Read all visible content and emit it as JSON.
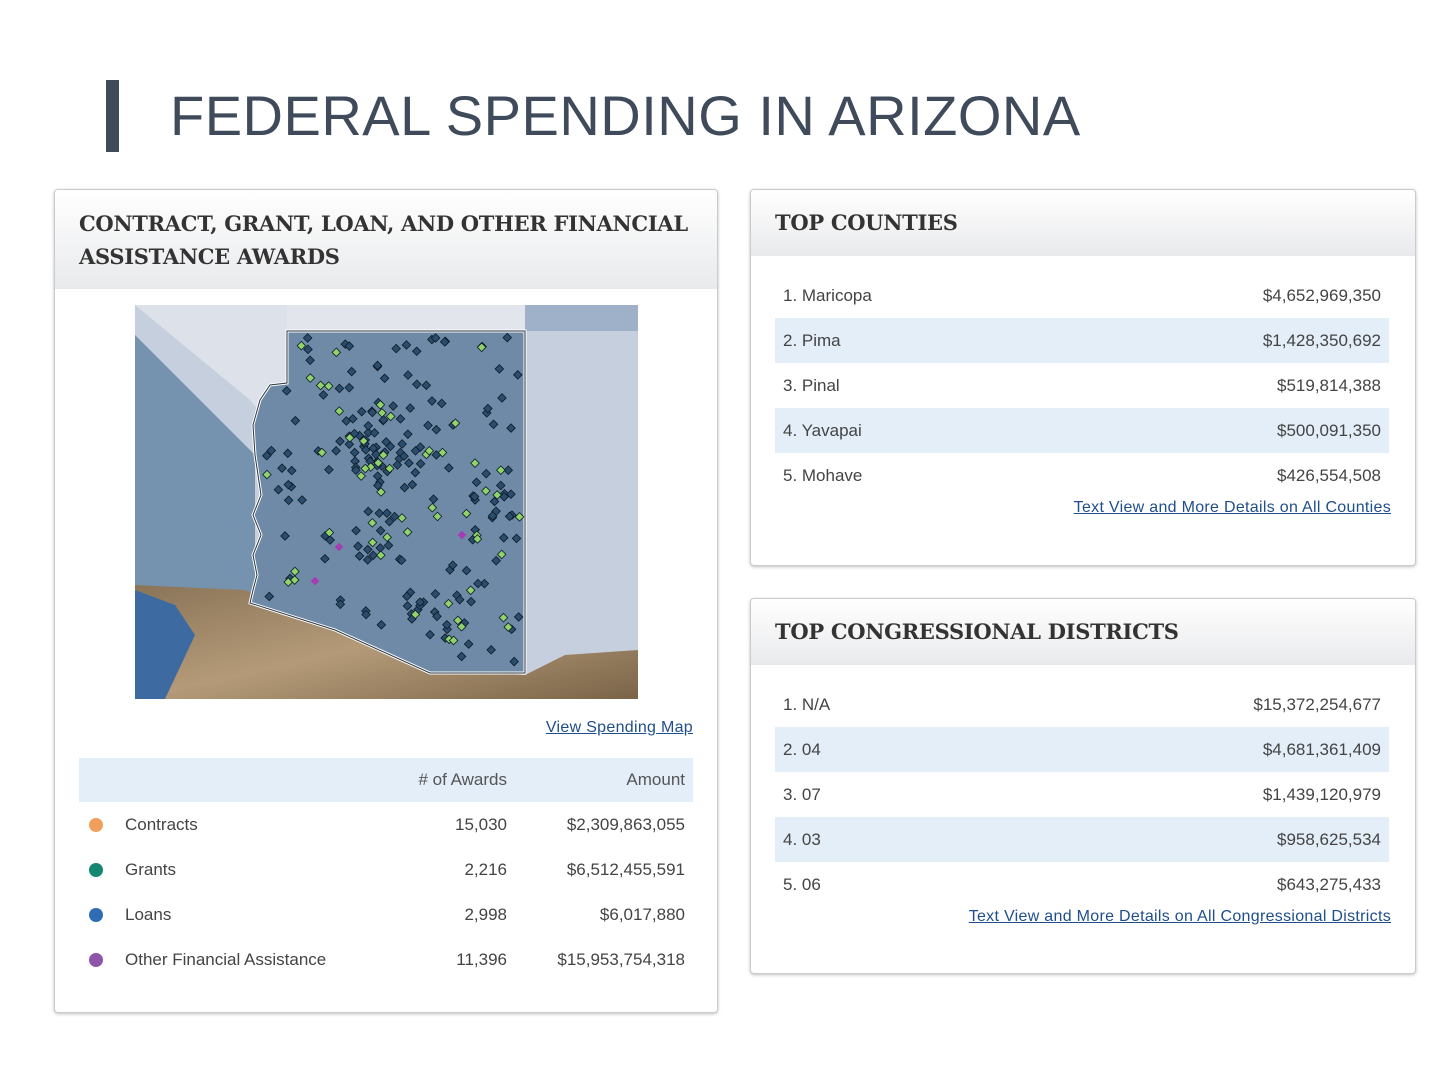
{
  "page": {
    "title": "FEDERAL SPENDING IN ARIZONA"
  },
  "awards": {
    "heading": "CONTRACT, GRANT, LOAN, AND OTHER FINANCIAL ASSISTANCE AWARDS",
    "map_link": "View Spending Map",
    "columns": {
      "awards": "# of Awards",
      "amount": "Amount"
    },
    "rows": [
      {
        "name": "Contracts",
        "awards": "15,030",
        "amount": "$2,309,863,055",
        "color": "#f0a05a"
      },
      {
        "name": "Grants",
        "awards": "2,216",
        "amount": "$6,512,455,591",
        "color": "#15876f"
      },
      {
        "name": "Loans",
        "awards": "2,998",
        "amount": "$6,017,880",
        "color": "#2e6db4"
      },
      {
        "name": "Other Financial Assistance",
        "awards": "11,396",
        "amount": "$15,953,754,318",
        "color": "#8e55a8"
      }
    ]
  },
  "counties": {
    "heading": "TOP COUNTIES",
    "items": [
      {
        "label": "1. Maricopa",
        "value": "$4,652,969,350"
      },
      {
        "label": "2. Pima",
        "value": "$1,428,350,692"
      },
      {
        "label": "3. Pinal",
        "value": "$519,814,388"
      },
      {
        "label": "4. Yavapai",
        "value": "$500,091,350"
      },
      {
        "label": "5. Mohave",
        "value": "$426,554,508"
      }
    ],
    "link": "Text View and More Details on All Counties"
  },
  "districts": {
    "heading": "TOP CONGRESSIONAL DISTRICTS",
    "items": [
      {
        "label": "1. N/A",
        "value": "$15,372,254,677"
      },
      {
        "label": "2. 04",
        "value": "$4,681,361,409"
      },
      {
        "label": "3. 07",
        "value": "$1,439,120,979"
      },
      {
        "label": "4. 03",
        "value": "$958,625,534"
      },
      {
        "label": "5. 06",
        "value": "$643,275,433"
      }
    ],
    "link": "Text View and More Details on All Congressional Districts"
  },
  "colors": {
    "accent": "#3f4b5b",
    "stripe": "#e4eef8",
    "link": "#1f4e8c",
    "map_state": "#6e8aa6",
    "map_marker_dark": "#2a4d6e",
    "map_marker_green": "#8fd36a"
  }
}
